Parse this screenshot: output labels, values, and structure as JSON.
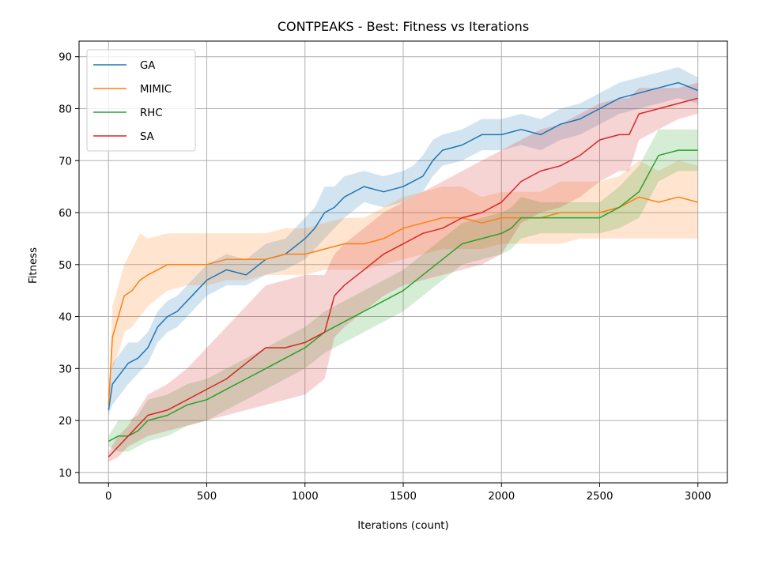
{
  "chart_data": {
    "type": "line",
    "title": "CONTPEAKS - Best: Fitness vs Iterations",
    "xlabel": "Iterations (count)",
    "ylabel": "Fitness",
    "xlim": [
      -150,
      3150
    ],
    "ylim": [
      8,
      93
    ],
    "xticks": [
      0,
      500,
      1000,
      1500,
      2000,
      2500,
      3000
    ],
    "yticks": [
      10,
      20,
      30,
      40,
      50,
      60,
      70,
      80,
      90
    ],
    "grid": true,
    "legend_position": "top-left",
    "series": [
      {
        "name": "GA",
        "color": "#1f77b4",
        "x": [
          0,
          20,
          60,
          100,
          150,
          200,
          250,
          300,
          350,
          400,
          450,
          500,
          600,
          700,
          800,
          900,
          1000,
          1050,
          1100,
          1150,
          1200,
          1300,
          1400,
          1500,
          1550,
          1600,
          1650,
          1700,
          1800,
          1900,
          2000,
          2100,
          2200,
          2300,
          2400,
          2500,
          2600,
          2700,
          2800,
          2900,
          3000
        ],
        "y": [
          22,
          27,
          29,
          31,
          32,
          34,
          38,
          40,
          41,
          43,
          45,
          47,
          49,
          48,
          51,
          52,
          55,
          57,
          60,
          61,
          63,
          65,
          64,
          65,
          66,
          67,
          70,
          72,
          73,
          75,
          75,
          76,
          75,
          77,
          78,
          80,
          82,
          83,
          84,
          85,
          83.5
        ],
        "lower": [
          21,
          23,
          25,
          27,
          29,
          31,
          35,
          37,
          38,
          40,
          42,
          44,
          46,
          46,
          48,
          49,
          51,
          53,
          55,
          57,
          59,
          62,
          61,
          62,
          63,
          64,
          67,
          69,
          70,
          72,
          72,
          73,
          72,
          74,
          75,
          77,
          79,
          80,
          81,
          82,
          81
        ],
        "upper": [
          23,
          31,
          33,
          35,
          35,
          37,
          41,
          43,
          44,
          46,
          48,
          50,
          52,
          51,
          54,
          55,
          59,
          61,
          65,
          65,
          67,
          68,
          67,
          68,
          69,
          71,
          74,
          75,
          76,
          78,
          78,
          79,
          78,
          80,
          81,
          83,
          85,
          86,
          87,
          88,
          86
        ]
      },
      {
        "name": "MIMIC",
        "color": "#ff7f0e",
        "x": [
          0,
          20,
          50,
          80,
          120,
          160,
          200,
          300,
          400,
          500,
          600,
          700,
          800,
          900,
          1000,
          1100,
          1200,
          1300,
          1400,
          1500,
          1600,
          1700,
          1800,
          1900,
          2000,
          2100,
          2200,
          2300,
          2400,
          2500,
          2600,
          2700,
          2800,
          2900,
          3000
        ],
        "y": [
          23,
          36,
          40,
          44,
          45,
          47,
          48,
          50,
          50,
          50,
          51,
          51,
          51,
          52,
          52,
          53,
          54,
          54,
          55,
          57,
          58,
          59,
          59,
          58,
          59,
          59,
          59,
          60,
          60,
          60,
          61,
          63,
          62,
          63,
          62
        ],
        "lower": [
          22,
          30,
          33,
          37,
          38,
          40,
          42,
          45,
          46,
          46,
          47,
          47,
          48,
          48,
          48,
          49,
          49,
          49,
          50,
          51,
          52,
          53,
          53,
          53,
          54,
          54,
          54,
          54,
          55,
          55,
          55,
          55,
          55,
          55,
          55
        ],
        "upper": [
          24,
          42,
          46,
          50,
          53,
          56,
          55,
          56,
          56,
          56,
          56,
          56,
          56,
          57,
          57,
          58,
          59,
          59,
          61,
          63,
          64,
          65,
          65,
          63,
          64,
          64,
          64,
          66,
          66,
          66,
          67,
          70,
          68,
          70,
          69
        ]
      },
      {
        "name": "RHC",
        "color": "#2ca02c",
        "x": [
          0,
          50,
          100,
          150,
          200,
          300,
          400,
          500,
          600,
          700,
          800,
          900,
          1000,
          1100,
          1200,
          1300,
          1400,
          1500,
          1600,
          1700,
          1800,
          1900,
          2000,
          2050,
          2100,
          2200,
          2300,
          2400,
          2500,
          2600,
          2700,
          2800,
          2900,
          3000
        ],
        "y": [
          16,
          17,
          17,
          18,
          20,
          21,
          23,
          24,
          26,
          28,
          30,
          32,
          34,
          37,
          39,
          41,
          43,
          45,
          48,
          51,
          54,
          55,
          56,
          57,
          59,
          59,
          59,
          59,
          59,
          61,
          64,
          71,
          72,
          72
        ],
        "lower": [
          15,
          14,
          14,
          15,
          16,
          17,
          19,
          20,
          22,
          24,
          26,
          28,
          30,
          33,
          35,
          37,
          39,
          41,
          44,
          47,
          50,
          51,
          52,
          53,
          55,
          56,
          56,
          56,
          56,
          57,
          59,
          66,
          68,
          68
        ],
        "upper": [
          17,
          20,
          20,
          21,
          24,
          25,
          27,
          28,
          30,
          32,
          34,
          36,
          38,
          41,
          43,
          45,
          47,
          49,
          52,
          55,
          58,
          59,
          60,
          61,
          63,
          62,
          62,
          62,
          62,
          65,
          69,
          76,
          76,
          76
        ]
      },
      {
        "name": "SA",
        "color": "#d62728",
        "x": [
          0,
          50,
          100,
          150,
          200,
          300,
          400,
          500,
          600,
          700,
          800,
          900,
          1000,
          1100,
          1150,
          1200,
          1300,
          1400,
          1500,
          1600,
          1700,
          1800,
          1900,
          2000,
          2100,
          2200,
          2300,
          2400,
          2500,
          2600,
          2650,
          2700,
          2800,
          2900,
          3000
        ],
        "y": [
          13,
          15,
          17,
          19,
          21,
          22,
          24,
          26,
          28,
          31,
          34,
          34,
          35,
          37,
          44,
          46,
          49,
          52,
          54,
          56,
          57,
          59,
          60,
          62,
          66,
          68,
          69,
          71,
          74,
          75,
          75,
          79,
          80,
          81,
          82
        ],
        "lower": [
          12,
          13,
          15,
          16,
          17,
          18,
          19,
          20,
          21,
          22,
          23,
          24,
          25,
          28,
          36,
          38,
          41,
          44,
          46,
          47,
          48,
          49,
          50,
          52,
          58,
          60,
          61,
          63,
          66,
          68,
          68,
          74,
          76,
          78,
          79
        ],
        "upper": [
          14,
          17,
          19,
          22,
          25,
          27,
          30,
          34,
          38,
          42,
          46,
          47,
          48,
          48,
          52,
          54,
          57,
          60,
          62,
          64,
          66,
          68,
          70,
          72,
          74,
          76,
          77,
          79,
          81,
          82,
          82,
          84,
          84,
          84,
          85
        ]
      }
    ]
  }
}
